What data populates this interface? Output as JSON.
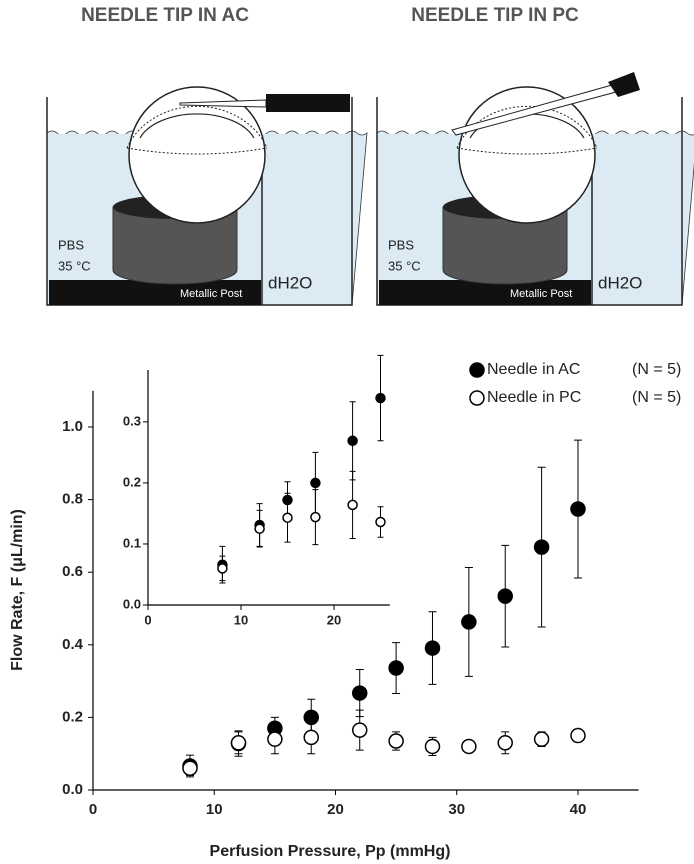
{
  "diagrams": [
    {
      "title": "NEEDLE TIP IN AC",
      "bath_label": "PBS",
      "temp_label": "35 °C",
      "post_label": "Metallic Post",
      "outer_label": "dH2O"
    },
    {
      "title": "NEEDLE TIP IN PC",
      "bath_label": "PBS",
      "temp_label": "35 °C",
      "post_label": "Metallic Post",
      "outer_label": "dH2O"
    }
  ],
  "chart_data": [
    {
      "type": "scatter",
      "xlabel": "Perfusion Pressure, Pp (mmHg)",
      "ylabel": "Flow Rate, F (μL/min)",
      "xlim": [
        0,
        45
      ],
      "ylim": [
        0,
        1.1
      ],
      "xticks": [
        0,
        10,
        20,
        30,
        40
      ],
      "yticks": [
        {
          "value": 0,
          "label": "0.0"
        },
        0.2,
        0.4,
        0.6,
        0.8,
        {
          "value": 1,
          "label": "1.0"
        }
      ],
      "legend": "upper right",
      "legend_notes": [
        "(N = 5)",
        "(N = 5)"
      ],
      "series": [
        {
          "name": "Needle in AC",
          "color": "#000000",
          "marker": "filled",
          "x": [
            8,
            12,
            15,
            18,
            22,
            25,
            28,
            31,
            34,
            37,
            40
          ],
          "values": [
            0.066,
            0.128,
            0.17,
            0.2,
            0.267,
            0.336,
            0.391,
            0.463,
            0.534,
            0.669,
            0.774
          ],
          "errors": [
            0.03,
            0.035,
            0.03,
            0.05,
            0.065,
            0.07,
            0.1,
            0.15,
            0.14,
            0.22,
            0.19
          ]
        },
        {
          "name": "Needle in PC",
          "color": "#000000",
          "marker": "open",
          "x": [
            8,
            12,
            15,
            18,
            22,
            25,
            28,
            31,
            34,
            37,
            40
          ],
          "values": [
            0.06,
            0.13,
            0.14,
            0.145,
            0.165,
            0.135,
            0.12,
            0.12,
            0.13,
            0.14,
            0.15
          ],
          "errors": [
            0.02,
            0.03,
            0.04,
            0.045,
            0.055,
            0.025,
            0.025,
            0.01,
            0.03,
            0.02,
            0.005
          ]
        }
      ]
    },
    {
      "type": "scatter",
      "xlim": [
        0,
        26
      ],
      "ylim": [
        0,
        0.385
      ],
      "xticks": [
        0,
        10,
        20
      ],
      "yticks": [
        {
          "value": 0,
          "label": "0.0"
        },
        0.1,
        0.2,
        0.3
      ],
      "series": [
        {
          "name": "Needle in AC",
          "color": "#000000",
          "marker": "filled",
          "x": [
            8,
            12,
            15,
            18,
            22,
            25
          ],
          "values": [
            0.066,
            0.131,
            0.172,
            0.2,
            0.269,
            0.339
          ],
          "errors": [
            0.03,
            0.035,
            0.03,
            0.05,
            0.064,
            0.07
          ]
        },
        {
          "name": "Needle in PC",
          "color": "#000000",
          "marker": "open",
          "x": [
            8,
            12,
            15,
            18,
            22,
            25
          ],
          "values": [
            0.06,
            0.125,
            0.143,
            0.144,
            0.164,
            0.136
          ],
          "errors": [
            0.02,
            0.03,
            0.04,
            0.045,
            0.055,
            0.025
          ]
        }
      ]
    }
  ]
}
